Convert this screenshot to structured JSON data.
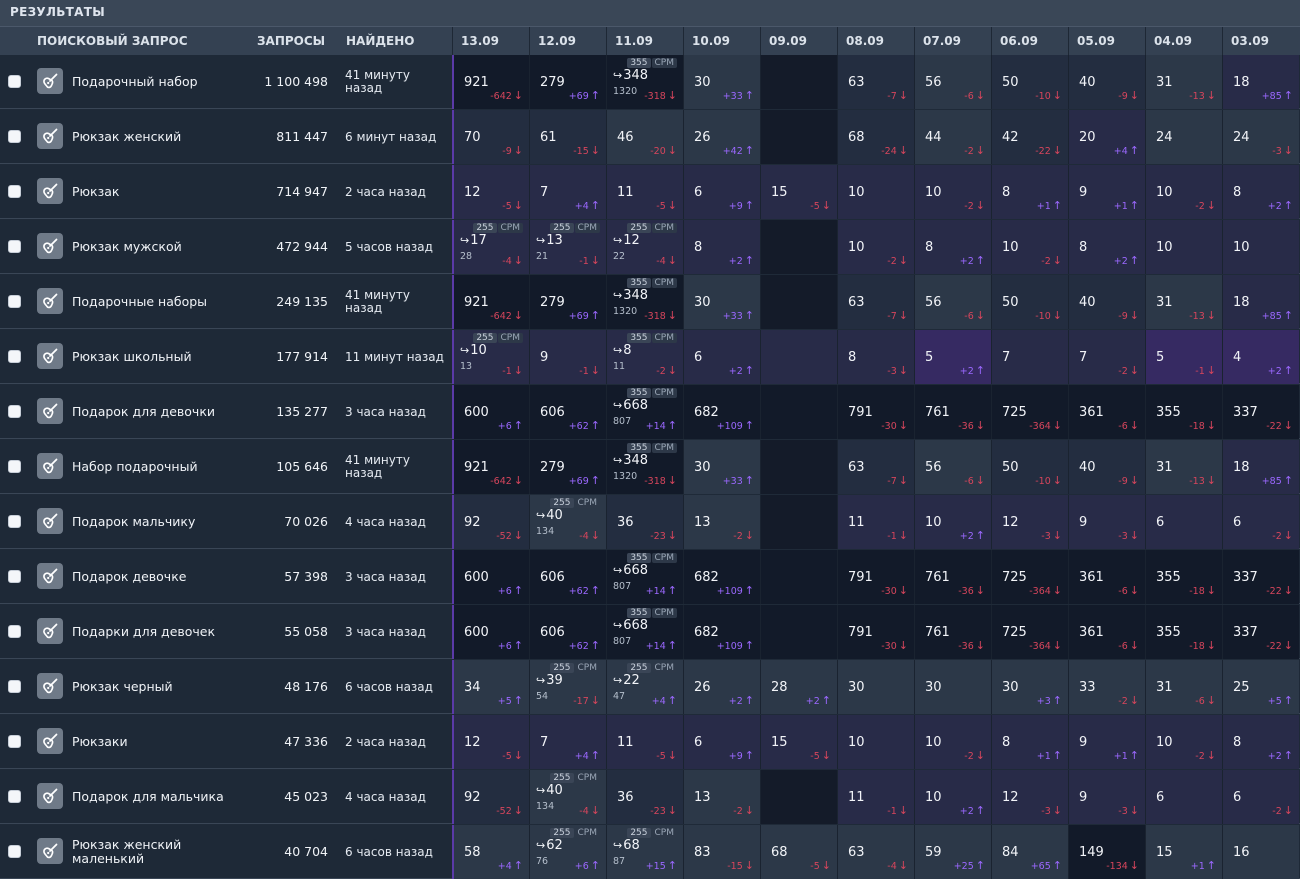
{
  "panel_title": "РЕЗУЛЬТАТЫ",
  "header": {
    "query": "ПОИСКОВЫЙ ЗАПРОС",
    "requests": "ЗАПРОСЫ",
    "found": "НАЙДЕНО",
    "dates": [
      "13.09",
      "12.09",
      "11.09",
      "10.09",
      "09.09",
      "08.09",
      "07.09",
      "06.09",
      "05.09",
      "04.09",
      "03.09"
    ]
  },
  "colors": {
    "negative": "#d6455c",
    "positive": "#9b68ff",
    "accent": "#5b3aa8"
  },
  "rows": [
    {
      "query": "Подарочный набор",
      "requests": "1 100 498",
      "found": "41 минуту назад",
      "cells": [
        {
          "v": "921",
          "d": "-642",
          "bg": "bl"
        },
        {
          "v": "279",
          "d": "+69",
          "bg": "bl"
        },
        {
          "v": "348",
          "d": "-318",
          "bg": "bl",
          "badge": "355",
          "badge_tag": "CPM",
          "arrow": true,
          "sub": "1320"
        },
        {
          "v": "30",
          "d": "+33",
          "bg": "bg"
        },
        {
          "v": "",
          "d": "",
          "bg": "bd"
        },
        {
          "v": "63",
          "d": "-7",
          "bg": "bm"
        },
        {
          "v": "56",
          "d": "-6",
          "bg": "bg"
        },
        {
          "v": "50",
          "d": "-10",
          "bg": "bm"
        },
        {
          "v": "40",
          "d": "-9",
          "bg": "bm"
        },
        {
          "v": "31",
          "d": "-13",
          "bg": "bg"
        },
        {
          "v": "18",
          "d": "+85",
          "bg": "bp"
        }
      ]
    },
    {
      "query": "Рюкзак женский",
      "requests": "811 447",
      "found": "6 минут назад",
      "cells": [
        {
          "v": "70",
          "d": "-9",
          "bg": "bm"
        },
        {
          "v": "61",
          "d": "-15",
          "bg": "bm"
        },
        {
          "v": "46",
          "d": "-20",
          "bg": "bg"
        },
        {
          "v": "26",
          "d": "+42",
          "bg": "bg"
        },
        {
          "v": "",
          "d": "",
          "bg": "bd"
        },
        {
          "v": "68",
          "d": "-24",
          "bg": "bm"
        },
        {
          "v": "44",
          "d": "-2",
          "bg": "bg"
        },
        {
          "v": "42",
          "d": "-22",
          "bg": "bm"
        },
        {
          "v": "20",
          "d": "+4",
          "bg": "bp"
        },
        {
          "v": "24",
          "d": "",
          "bg": "bg"
        },
        {
          "v": "24",
          "d": "-3",
          "bg": "bg"
        }
      ]
    },
    {
      "query": "Рюкзак",
      "requests": "714 947",
      "found": "2 часа назад",
      "cells": [
        {
          "v": "12",
          "d": "-5",
          "bg": "bp"
        },
        {
          "v": "7",
          "d": "+4",
          "bg": "bp"
        },
        {
          "v": "11",
          "d": "-5",
          "bg": "bp"
        },
        {
          "v": "6",
          "d": "+9",
          "bg": "bp"
        },
        {
          "v": "15",
          "d": "-5",
          "bg": "bp"
        },
        {
          "v": "10",
          "d": "",
          "bg": "bp"
        },
        {
          "v": "10",
          "d": "-2",
          "bg": "bp"
        },
        {
          "v": "8",
          "d": "+1",
          "bg": "bp"
        },
        {
          "v": "9",
          "d": "+1",
          "bg": "bp"
        },
        {
          "v": "10",
          "d": "-2",
          "bg": "bp"
        },
        {
          "v": "8",
          "d": "+2",
          "bg": "bp"
        }
      ]
    },
    {
      "query": "Рюкзак мужской",
      "requests": "472 944",
      "found": "5 часов назад",
      "cells": [
        {
          "v": "17",
          "d": "-4",
          "bg": "bp",
          "badge": "255",
          "badge_tag": "CPM",
          "arrow": true,
          "sub": "28"
        },
        {
          "v": "13",
          "d": "-1",
          "bg": "bp",
          "badge": "255",
          "badge_tag": "CPM",
          "arrow": true,
          "sub": "21"
        },
        {
          "v": "12",
          "d": "-4",
          "bg": "bp",
          "badge": "255",
          "badge_tag": "CPM",
          "arrow": true,
          "sub": "22"
        },
        {
          "v": "8",
          "d": "+2",
          "bg": "bp"
        },
        {
          "v": "",
          "d": "",
          "bg": "bd"
        },
        {
          "v": "10",
          "d": "-2",
          "bg": "bp"
        },
        {
          "v": "8",
          "d": "+2",
          "bg": "bp"
        },
        {
          "v": "10",
          "d": "-2",
          "bg": "bp"
        },
        {
          "v": "8",
          "d": "+2",
          "bg": "bp"
        },
        {
          "v": "10",
          "d": "",
          "bg": "bp"
        },
        {
          "v": "10",
          "d": "",
          "bg": "bp"
        }
      ]
    },
    {
      "query": "Подарочные наборы",
      "requests": "249 135",
      "found": "41 минуту назад",
      "cells": [
        {
          "v": "921",
          "d": "-642",
          "bg": "bl"
        },
        {
          "v": "279",
          "d": "+69",
          "bg": "bl"
        },
        {
          "v": "348",
          "d": "-318",
          "bg": "bl",
          "badge": "355",
          "badge_tag": "CPM",
          "arrow": true,
          "sub": "1320"
        },
        {
          "v": "30",
          "d": "+33",
          "bg": "bg"
        },
        {
          "v": "",
          "d": "",
          "bg": "bd"
        },
        {
          "v": "63",
          "d": "-7",
          "bg": "bm"
        },
        {
          "v": "56",
          "d": "-6",
          "bg": "bg"
        },
        {
          "v": "50",
          "d": "-10",
          "bg": "bm"
        },
        {
          "v": "40",
          "d": "-9",
          "bg": "bm"
        },
        {
          "v": "31",
          "d": "-13",
          "bg": "bg"
        },
        {
          "v": "18",
          "d": "+85",
          "bg": "bp"
        }
      ]
    },
    {
      "query": "Рюкзак школьный",
      "requests": "177 914",
      "found": "11 минут назад",
      "cells": [
        {
          "v": "10",
          "d": "-1",
          "bg": "bp",
          "badge": "255",
          "badge_tag": "CPM",
          "arrow": true,
          "sub": "13"
        },
        {
          "v": "9",
          "d": "-1",
          "bg": "bp"
        },
        {
          "v": "8",
          "d": "-2",
          "bg": "bp",
          "badge": "355",
          "badge_tag": "CPM",
          "arrow": true,
          "sub": "11"
        },
        {
          "v": "6",
          "d": "+2",
          "bg": "bp"
        },
        {
          "v": "",
          "d": "",
          "bg": "bp"
        },
        {
          "v": "8",
          "d": "-3",
          "bg": "bp"
        },
        {
          "v": "5",
          "d": "+2",
          "bg": "bv"
        },
        {
          "v": "7",
          "d": "",
          "bg": "bp"
        },
        {
          "v": "7",
          "d": "-2",
          "bg": "bp"
        },
        {
          "v": "5",
          "d": "-1",
          "bg": "bv"
        },
        {
          "v": "4",
          "d": "+2",
          "bg": "bv"
        }
      ]
    },
    {
      "query": "Подарок для девочки",
      "requests": "135 277",
      "found": "3 часа назад",
      "cells": [
        {
          "v": "600",
          "d": "+6",
          "bg": "bl"
        },
        {
          "v": "606",
          "d": "+62",
          "bg": "bl"
        },
        {
          "v": "668",
          "d": "+14",
          "bg": "bl",
          "badge": "355",
          "badge_tag": "CPM",
          "arrow": true,
          "sub": "807"
        },
        {
          "v": "682",
          "d": "+109",
          "bg": "bl"
        },
        {
          "v": "",
          "d": "",
          "bg": "bl"
        },
        {
          "v": "791",
          "d": "-30",
          "bg": "bl"
        },
        {
          "v": "761",
          "d": "-36",
          "bg": "bl"
        },
        {
          "v": "725",
          "d": "-364",
          "bg": "bl"
        },
        {
          "v": "361",
          "d": "-6",
          "bg": "bl"
        },
        {
          "v": "355",
          "d": "-18",
          "bg": "bl"
        },
        {
          "v": "337",
          "d": "-22",
          "bg": "bl"
        }
      ]
    },
    {
      "query": "Набор подарочный",
      "requests": "105 646",
      "found": "41 минуту назад",
      "cells": [
        {
          "v": "921",
          "d": "-642",
          "bg": "bl"
        },
        {
          "v": "279",
          "d": "+69",
          "bg": "bl"
        },
        {
          "v": "348",
          "d": "-318",
          "bg": "bl",
          "badge": "355",
          "badge_tag": "CPM",
          "arrow": true,
          "sub": "1320"
        },
        {
          "v": "30",
          "d": "+33",
          "bg": "bg"
        },
        {
          "v": "",
          "d": "",
          "bg": "bd"
        },
        {
          "v": "63",
          "d": "-7",
          "bg": "bm"
        },
        {
          "v": "56",
          "d": "-6",
          "bg": "bg"
        },
        {
          "v": "50",
          "d": "-10",
          "bg": "bm"
        },
        {
          "v": "40",
          "d": "-9",
          "bg": "bm"
        },
        {
          "v": "31",
          "d": "-13",
          "bg": "bg"
        },
        {
          "v": "18",
          "d": "+85",
          "bg": "bp"
        }
      ]
    },
    {
      "query": "Подарок мальчику",
      "requests": "70 026",
      "found": "4 часа назад",
      "cells": [
        {
          "v": "92",
          "d": "-52",
          "bg": "bm"
        },
        {
          "v": "40",
          "d": "-4",
          "bg": "bg",
          "badge": "255",
          "badge_tag": "CPM",
          "arrow": true,
          "sub": "134"
        },
        {
          "v": "36",
          "d": "-23",
          "bg": "bm"
        },
        {
          "v": "13",
          "d": "-2",
          "bg": "bg"
        },
        {
          "v": "",
          "d": "",
          "bg": "bd"
        },
        {
          "v": "11",
          "d": "-1",
          "bg": "bp"
        },
        {
          "v": "10",
          "d": "+2",
          "bg": "bp"
        },
        {
          "v": "12",
          "d": "-3",
          "bg": "bp"
        },
        {
          "v": "9",
          "d": "-3",
          "bg": "bp"
        },
        {
          "v": "6",
          "d": "",
          "bg": "bp"
        },
        {
          "v": "6",
          "d": "-2",
          "bg": "bp"
        }
      ]
    },
    {
      "query": "Подарок девочке",
      "requests": "57 398",
      "found": "3 часа назад",
      "cells": [
        {
          "v": "600",
          "d": "+6",
          "bg": "bl"
        },
        {
          "v": "606",
          "d": "+62",
          "bg": "bl"
        },
        {
          "v": "668",
          "d": "+14",
          "bg": "bl",
          "badge": "355",
          "badge_tag": "CPM",
          "arrow": true,
          "sub": "807"
        },
        {
          "v": "682",
          "d": "+109",
          "bg": "bl"
        },
        {
          "v": "",
          "d": "",
          "bg": "bl"
        },
        {
          "v": "791",
          "d": "-30",
          "bg": "bl"
        },
        {
          "v": "761",
          "d": "-36",
          "bg": "bl"
        },
        {
          "v": "725",
          "d": "-364",
          "bg": "bl"
        },
        {
          "v": "361",
          "d": "-6",
          "bg": "bl"
        },
        {
          "v": "355",
          "d": "-18",
          "bg": "bl"
        },
        {
          "v": "337",
          "d": "-22",
          "bg": "bl"
        }
      ]
    },
    {
      "query": "Подарки для девочек",
      "requests": "55 058",
      "found": "3 часа назад",
      "cells": [
        {
          "v": "600",
          "d": "+6",
          "bg": "bl"
        },
        {
          "v": "606",
          "d": "+62",
          "bg": "bl"
        },
        {
          "v": "668",
          "d": "+14",
          "bg": "bl",
          "badge": "355",
          "badge_tag": "CPM",
          "arrow": true,
          "sub": "807"
        },
        {
          "v": "682",
          "d": "+109",
          "bg": "bl"
        },
        {
          "v": "",
          "d": "",
          "bg": "bl"
        },
        {
          "v": "791",
          "d": "-30",
          "bg": "bl"
        },
        {
          "v": "761",
          "d": "-36",
          "bg": "bl"
        },
        {
          "v": "725",
          "d": "-364",
          "bg": "bl"
        },
        {
          "v": "361",
          "d": "-6",
          "bg": "bl"
        },
        {
          "v": "355",
          "d": "-18",
          "bg": "bl"
        },
        {
          "v": "337",
          "d": "-22",
          "bg": "bl"
        }
      ]
    },
    {
      "query": "Рюкзак черный",
      "requests": "48 176",
      "found": "6 часов назад",
      "cells": [
        {
          "v": "34",
          "d": "+5",
          "bg": "bg"
        },
        {
          "v": "39",
          "d": "-17",
          "bg": "bg",
          "badge": "255",
          "badge_tag": "CPM",
          "arrow": true,
          "sub": "54"
        },
        {
          "v": "22",
          "d": "+4",
          "bg": "bg",
          "badge": "255",
          "badge_tag": "CPM",
          "arrow": true,
          "sub": "47"
        },
        {
          "v": "26",
          "d": "+2",
          "bg": "bg"
        },
        {
          "v": "28",
          "d": "+2",
          "bg": "bg"
        },
        {
          "v": "30",
          "d": "",
          "bg": "bg"
        },
        {
          "v": "30",
          "d": "",
          "bg": "bg"
        },
        {
          "v": "30",
          "d": "+3",
          "bg": "bg"
        },
        {
          "v": "33",
          "d": "-2",
          "bg": "bg"
        },
        {
          "v": "31",
          "d": "-6",
          "bg": "bg"
        },
        {
          "v": "25",
          "d": "+5",
          "bg": "bg"
        }
      ]
    },
    {
      "query": "Рюкзаки",
      "requests": "47 336",
      "found": "2 часа назад",
      "cells": [
        {
          "v": "12",
          "d": "-5",
          "bg": "bp"
        },
        {
          "v": "7",
          "d": "+4",
          "bg": "bp"
        },
        {
          "v": "11",
          "d": "-5",
          "bg": "bp"
        },
        {
          "v": "6",
          "d": "+9",
          "bg": "bp"
        },
        {
          "v": "15",
          "d": "-5",
          "bg": "bp"
        },
        {
          "v": "10",
          "d": "",
          "bg": "bp"
        },
        {
          "v": "10",
          "d": "-2",
          "bg": "bp"
        },
        {
          "v": "8",
          "d": "+1",
          "bg": "bp"
        },
        {
          "v": "9",
          "d": "+1",
          "bg": "bp"
        },
        {
          "v": "10",
          "d": "-2",
          "bg": "bp"
        },
        {
          "v": "8",
          "d": "+2",
          "bg": "bp"
        }
      ]
    },
    {
      "query": "Подарок для мальчика",
      "requests": "45 023",
      "found": "4 часа назад",
      "cells": [
        {
          "v": "92",
          "d": "-52",
          "bg": "bm"
        },
        {
          "v": "40",
          "d": "-4",
          "bg": "bg",
          "badge": "255",
          "badge_tag": "CPM",
          "arrow": true,
          "sub": "134"
        },
        {
          "v": "36",
          "d": "-23",
          "bg": "bm"
        },
        {
          "v": "13",
          "d": "-2",
          "bg": "bg"
        },
        {
          "v": "",
          "d": "",
          "bg": "bd"
        },
        {
          "v": "11",
          "d": "-1",
          "bg": "bp"
        },
        {
          "v": "10",
          "d": "+2",
          "bg": "bp"
        },
        {
          "v": "12",
          "d": "-3",
          "bg": "bp"
        },
        {
          "v": "9",
          "d": "-3",
          "bg": "bp"
        },
        {
          "v": "6",
          "d": "",
          "bg": "bp"
        },
        {
          "v": "6",
          "d": "-2",
          "bg": "bp"
        }
      ]
    },
    {
      "query": "Рюкзак женский маленький",
      "requests": "40 704",
      "found": "6 часов назад",
      "cells": [
        {
          "v": "58",
          "d": "+4",
          "bg": "bg"
        },
        {
          "v": "62",
          "d": "+6",
          "bg": "bg",
          "badge": "255",
          "badge_tag": "CPM",
          "arrow": true,
          "sub": "76"
        },
        {
          "v": "68",
          "d": "+15",
          "bg": "bg",
          "badge": "255",
          "badge_tag": "CPM",
          "arrow": true,
          "sub": "87"
        },
        {
          "v": "83",
          "d": "-15",
          "bg": "bg"
        },
        {
          "v": "68",
          "d": "-5",
          "bg": "bg"
        },
        {
          "v": "63",
          "d": "-4",
          "bg": "bg"
        },
        {
          "v": "59",
          "d": "+25",
          "bg": "bg"
        },
        {
          "v": "84",
          "d": "+65",
          "bg": "bg"
        },
        {
          "v": "149",
          "d": "-134",
          "bg": "bl"
        },
        {
          "v": "15",
          "d": "+1",
          "bg": "bg"
        },
        {
          "v": "16",
          "d": "",
          "bg": "bg"
        }
      ]
    }
  ]
}
